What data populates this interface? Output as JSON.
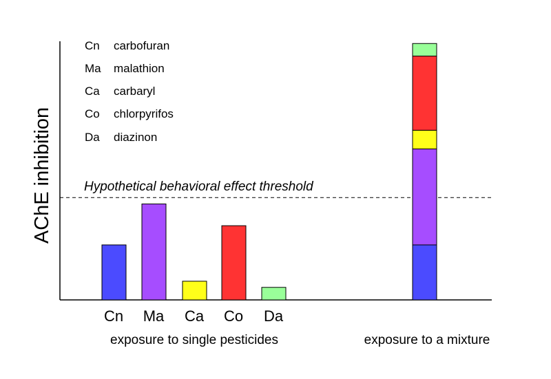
{
  "chart_data": {
    "type": "bar",
    "ylabel": "AChE inhibition",
    "xlabel": "",
    "ylim": [
      0,
      100
    ],
    "y_ticks_shown": false,
    "grid": false,
    "categories": [
      "Cn",
      "Ma",
      "Ca",
      "Co",
      "Da"
    ],
    "single_exposure": {
      "group_label": "exposure to single pesticides",
      "bars": [
        {
          "category": "Cn",
          "value": 21.5,
          "color": "#4b4bff"
        },
        {
          "category": "Ma",
          "value": 37.5,
          "color": "#a64dff"
        },
        {
          "category": "Ca",
          "value": 7.3,
          "color": "#ffff1a"
        },
        {
          "category": "Co",
          "value": 29.0,
          "color": "#ff3333"
        },
        {
          "category": "Da",
          "value": 4.9,
          "color": "#99ff99"
        }
      ]
    },
    "mixture_exposure": {
      "group_label": "exposure to a mixture",
      "stacked": [
        {
          "category": "Cn",
          "value": 21.5,
          "color": "#4b4bff"
        },
        {
          "category": "Ma",
          "value": 37.5,
          "color": "#a64dff"
        },
        {
          "category": "Ca",
          "value": 7.3,
          "color": "#ffff1a"
        },
        {
          "category": "Co",
          "value": 29.0,
          "color": "#ff3333"
        },
        {
          "category": "Da",
          "value": 4.9,
          "color": "#99ff99"
        }
      ]
    },
    "threshold": {
      "label": "Hypothetical behavioral effect threshold",
      "value": 40,
      "style": "dashed"
    },
    "legend": {
      "placement": "top-left",
      "entries": [
        {
          "code": "Cn",
          "name": "carbofuran"
        },
        {
          "code": "Ma",
          "name": "malathion"
        },
        {
          "code": "Ca",
          "name": "carbaryl"
        },
        {
          "code": "Co",
          "name": "chlorpyrifos"
        },
        {
          "code": "Da",
          "name": "diazinon"
        }
      ]
    }
  }
}
